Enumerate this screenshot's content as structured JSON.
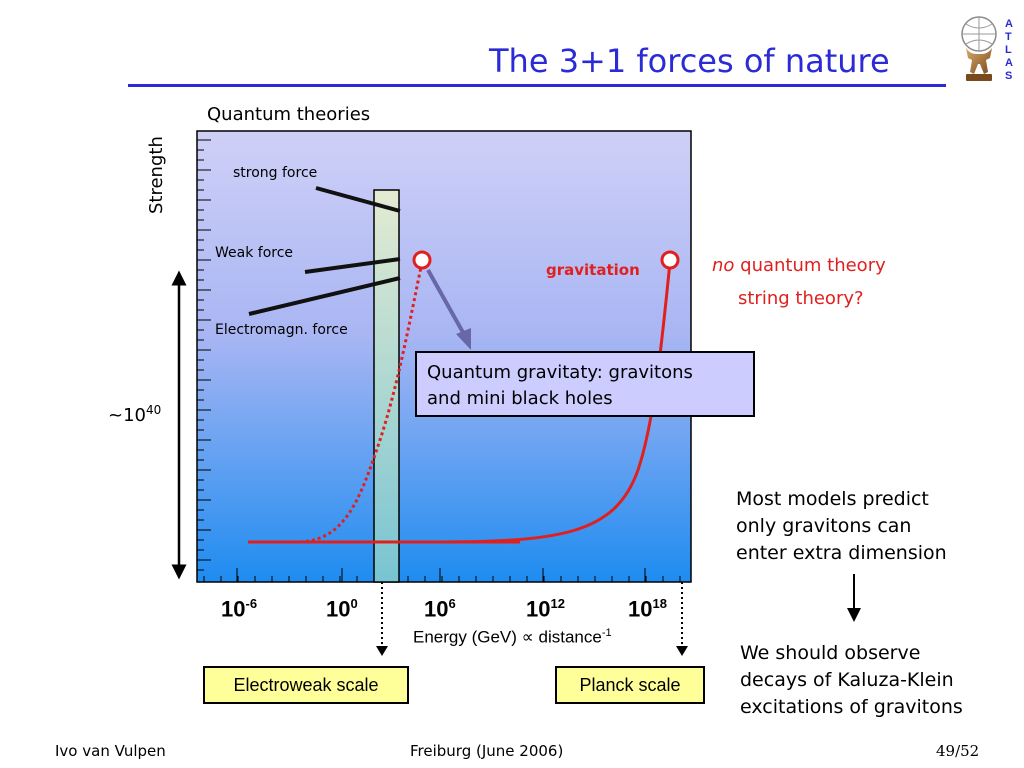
{
  "slide": {
    "title": "The 3+1 forces of nature",
    "logo_letters": [
      "A",
      "T",
      "L",
      "A",
      "S"
    ]
  },
  "diagram": {
    "top_label": "Quantum theories",
    "y_axis_label": "Strength",
    "forces": {
      "strong": "strong force",
      "weak": "Weak force",
      "electromagnetic": "Electromagn. force",
      "gravitation": "gravitation"
    },
    "annotations": {
      "no_quantum_emph": "no",
      "no_quantum_rest": " quantum theory",
      "string_theory": "string theory?",
      "quantum_gravity_line1": "Quantum gravitaty: gravitons",
      "quantum_gravity_line2": "and mini black holes",
      "strength_ratio_base": "~10",
      "strength_ratio_exp": "40"
    },
    "x_ticks": [
      {
        "base": "10",
        "exp": "-6"
      },
      {
        "base": "10",
        "exp": "0"
      },
      {
        "base": "10",
        "exp": "6"
      },
      {
        "base": "10",
        "exp": "12"
      },
      {
        "base": "10",
        "exp": "18"
      }
    ],
    "x_axis_label_main": "Energy (GeV) ∝ distance",
    "x_axis_label_exp": "-1",
    "electroweak_scale": "Electroweak scale",
    "planck_scale": "Planck scale",
    "colors": {
      "title_blue": "#2b2bd6",
      "gravitation_red": "#e0201e",
      "box_lilac": "#ccccff",
      "box_yellow": "#ffff99"
    }
  },
  "side_text": {
    "models_line1": "Most models predict",
    "models_line2": "only gravitons can",
    "models_line3": "enter extra dimension",
    "observe_line1": "We should observe",
    "observe_line2": "decays of Kaluza-Klein",
    "observe_line3": "excitations of gravitons"
  },
  "footer": {
    "author": "Ivo van Vulpen",
    "event": "Freiburg (June 2006)",
    "page": "49/52"
  }
}
